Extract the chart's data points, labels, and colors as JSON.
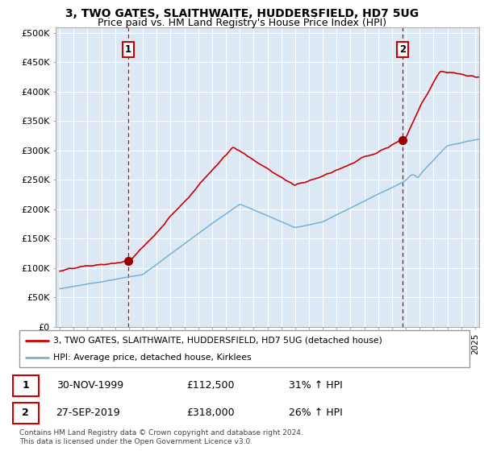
{
  "title": "3, TWO GATES, SLAITHWAITE, HUDDERSFIELD, HD7 5UG",
  "subtitle": "Price paid vs. HM Land Registry's House Price Index (HPI)",
  "ylabel_ticks": [
    "£0",
    "£50K",
    "£100K",
    "£150K",
    "£200K",
    "£250K",
    "£300K",
    "£350K",
    "£400K",
    "£450K",
    "£500K"
  ],
  "ytick_values": [
    0,
    50000,
    100000,
    150000,
    200000,
    250000,
    300000,
    350000,
    400000,
    450000,
    500000
  ],
  "ylim": [
    0,
    510000
  ],
  "xlim_start": 1994.7,
  "xlim_end": 2025.3,
  "sale1_date": 1999.92,
  "sale1_price": 112500,
  "sale1_label": "1",
  "sale2_date": 2019.75,
  "sale2_price": 318000,
  "sale2_label": "2",
  "red_line_color": "#cc0000",
  "blue_line_color": "#7ab0d4",
  "plot_bg_color": "#dce9f5",
  "dashed_line_color": "#cc0000",
  "marker_color": "#990000",
  "annotation_box_color": "#cc0000",
  "legend_label_red": "3, TWO GATES, SLAITHWAITE, HUDDERSFIELD, HD7 5UG (detached house)",
  "legend_label_blue": "HPI: Average price, detached house, Kirklees",
  "table_row1": [
    "1",
    "30-NOV-1999",
    "£112,500",
    "31% ↑ HPI"
  ],
  "table_row2": [
    "2",
    "27-SEP-2019",
    "£318,000",
    "26% ↑ HPI"
  ],
  "footer": "Contains HM Land Registry data © Crown copyright and database right 2024.\nThis data is licensed under the Open Government Licence v3.0.",
  "background_color": "#ffffff",
  "grid_color": "#ffffff",
  "title_fontsize": 10,
  "subtitle_fontsize": 9,
  "tick_fontsize": 8
}
